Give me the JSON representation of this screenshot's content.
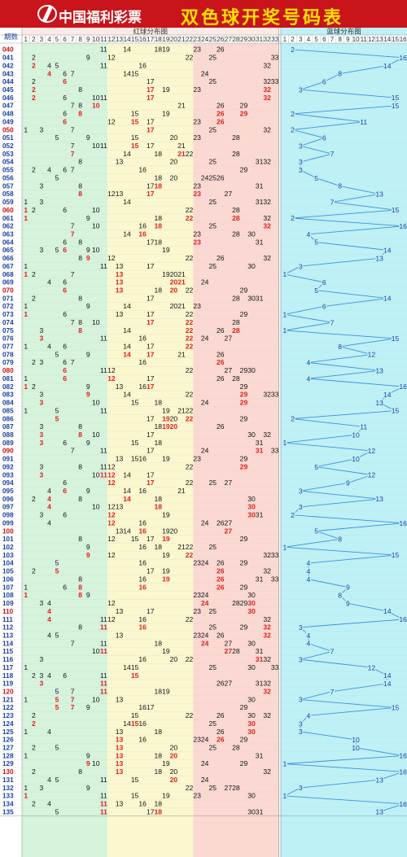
{
  "header": {
    "logo_text": "中国福利彩票",
    "title": "双色球开奖号码表"
  },
  "colors": {
    "header_bg": "#c8141a",
    "title_color": "#ffe100",
    "zone_green": "#d6f3dc",
    "zone_yellow": "#fbf7cf",
    "zone_pink": "#fbd9d2",
    "zone_blue": "#bdf1f6",
    "hot_red": "#e0201c",
    "cold_black": "#111111",
    "blue_ball": "#1b3fa5",
    "issue_blue": "#1b3fa5",
    "issue_red": "#d01010",
    "trend_line": "#3d90dc"
  },
  "chart_data": {
    "type": "table",
    "issue_label": "期数",
    "red_zone_label": "红球分布图",
    "blue_zone_label": "蓝球分布图",
    "red_columns": [
      1,
      2,
      3,
      4,
      5,
      6,
      7,
      8,
      9,
      10,
      11,
      12,
      13,
      14,
      15,
      16,
      17,
      18,
      19,
      20,
      21,
      22,
      23,
      24,
      25,
      26,
      27,
      28,
      29,
      30,
      31,
      32,
      33
    ],
    "blue_columns": [
      1,
      2,
      3,
      4,
      5,
      6,
      7,
      8,
      9,
      10,
      11,
      12,
      13,
      14,
      15,
      16
    ],
    "draws": [
      {
        "issue": "040",
        "red": [
          11,
          14,
          18,
          19,
          23,
          26
        ],
        "blue": 2
      },
      {
        "issue": "041",
        "red": [
          2,
          9,
          12,
          22,
          25,
          33
        ],
        "blue": 16
      },
      {
        "issue": "042",
        "red": [
          2,
          4,
          5,
          11,
          16,
          32
        ],
        "blue": 14
      },
      {
        "issue": "043",
        "red": [
          4,
          6,
          7,
          14,
          15,
          24
        ],
        "blue": 8
      },
      {
        "issue": "044",
        "red": [
          2,
          6,
          17,
          25,
          32,
          33
        ],
        "blue": 6
      },
      {
        "issue": "045",
        "red": [
          2,
          8,
          17,
          19,
          23,
          32
        ],
        "blue": 3
      },
      {
        "issue": "046",
        "red": [
          2,
          6,
          10,
          11,
          17,
          32
        ],
        "blue": 15
      },
      {
        "issue": "047",
        "red": [
          7,
          8,
          10,
          21,
          26,
          29
        ],
        "blue": 15
      },
      {
        "issue": "048",
        "red": [
          6,
          8,
          15,
          19,
          26,
          29
        ],
        "blue": 2
      },
      {
        "issue": "049",
        "red": [
          6,
          12,
          15,
          17,
          23,
          26
        ],
        "blue": 11
      },
      {
        "issue": "050",
        "red": [
          1,
          3,
          7,
          17,
          25,
          32
        ],
        "blue": 2
      },
      {
        "issue": "051",
        "red": [
          5,
          9,
          15,
          20,
          23,
          28
        ],
        "blue": 6
      },
      {
        "issue": "052",
        "red": [
          7,
          10,
          11,
          15,
          17,
          21
        ],
        "blue": 3
      },
      {
        "issue": "053",
        "red": [
          7,
          14,
          18,
          21,
          22,
          28
        ],
        "blue": 7
      },
      {
        "issue": "054",
        "red": [
          8,
          13,
          20,
          25,
          31,
          32
        ],
        "blue": 3
      },
      {
        "issue": "055",
        "red": [
          2,
          4,
          6,
          7,
          16,
          29
        ],
        "blue": 3
      },
      {
        "issue": "056",
        "red": [
          5,
          18,
          20,
          24,
          25,
          26
        ],
        "blue": 5
      },
      {
        "issue": "057",
        "red": [
          3,
          8,
          17,
          18,
          23,
          31
        ],
        "blue": 8
      },
      {
        "issue": "058",
        "red": [
          8,
          12,
          13,
          17,
          23,
          27
        ],
        "blue": 13
      },
      {
        "issue": "059",
        "red": [
          1,
          3,
          14,
          25,
          31,
          32
        ],
        "blue": 7
      },
      {
        "issue": "060",
        "red": [
          1,
          2,
          6,
          10,
          22,
          28
        ],
        "blue": 15
      },
      {
        "issue": "061",
        "red": [
          1,
          9,
          18,
          22,
          28,
          32
        ],
        "blue": 2
      },
      {
        "issue": "062",
        "red": [
          7,
          10,
          16,
          18,
          25,
          32
        ],
        "blue": 16
      },
      {
        "issue": "063",
        "red": [
          7,
          14,
          16,
          23,
          28,
          30
        ],
        "blue": 4
      },
      {
        "issue": "064",
        "red": [
          6,
          8,
          17,
          18,
          23,
          31
        ],
        "blue": 5
      },
      {
        "issue": "065",
        "red": [
          3,
          5,
          6,
          9,
          10,
          19
        ],
        "blue": 14
      },
      {
        "issue": "066",
        "red": [
          8,
          9,
          12,
          22,
          26,
          32
        ],
        "blue": 13
      },
      {
        "issue": "067",
        "red": [
          1,
          11,
          13,
          17,
          25,
          30
        ],
        "blue": 3
      },
      {
        "issue": "068",
        "red": [
          1,
          2,
          7,
          13,
          19,
          20,
          21
        ],
        "blue": 1
      },
      {
        "issue": "069",
        "red": [
          4,
          6,
          13,
          20,
          21,
          24
        ],
        "blue": 6
      },
      {
        "issue": "070",
        "red": [
          6,
          13,
          18,
          20,
          22,
          29
        ],
        "blue": 5
      },
      {
        "issue": "071",
        "red": [
          2,
          8,
          17,
          28,
          30,
          31
        ],
        "blue": 14
      },
      {
        "issue": "072",
        "red": [
          1,
          9,
          14,
          20,
          21,
          23
        ],
        "blue": 6
      },
      {
        "issue": "073",
        "red": [
          1,
          6,
          13,
          17,
          22,
          29
        ],
        "blue": 1
      },
      {
        "issue": "074",
        "red": [
          7,
          8,
          10,
          17,
          22,
          28
        ],
        "blue": 7
      },
      {
        "issue": "075",
        "red": [
          3,
          8,
          14,
          22,
          26,
          28
        ],
        "blue": 1
      },
      {
        "issue": "076",
        "red": [
          3,
          11,
          16,
          22,
          24,
          27
        ],
        "blue": 15
      },
      {
        "issue": "077",
        "red": [
          1,
          4,
          6,
          14,
          17,
          22
        ],
        "blue": 8
      },
      {
        "issue": "078",
        "red": [
          5,
          9,
          14,
          17,
          21,
          26
        ],
        "blue": 12
      },
      {
        "issue": "079",
        "red": [
          2,
          3,
          6,
          7,
          16,
          26
        ],
        "blue": 4
      },
      {
        "issue": "080",
        "red": [
          6,
          11,
          12,
          22,
          27,
          29,
          30
        ],
        "blue": 13
      },
      {
        "issue": "081",
        "red": [
          1,
          6,
          12,
          17,
          26,
          28
        ],
        "blue": 4
      },
      {
        "issue": "082",
        "red": [
          1,
          2,
          9,
          13,
          16,
          17,
          29
        ],
        "blue": 16
      },
      {
        "issue": "083",
        "red": [
          3,
          9,
          14,
          22,
          29,
          32,
          33
        ],
        "blue": 14
      },
      {
        "issue": "084",
        "red": [
          3,
          10,
          15,
          18,
          24,
          29
        ],
        "blue": 13
      },
      {
        "issue": "085",
        "red": [
          1,
          5,
          11,
          19,
          21,
          22
        ],
        "blue": 15
      },
      {
        "issue": "086",
        "red": [
          5,
          17,
          19,
          20,
          22,
          29
        ],
        "blue": 2
      },
      {
        "issue": "087",
        "red": [
          3,
          8,
          18,
          19,
          20,
          26
        ],
        "blue": 11
      },
      {
        "issue": "088",
        "red": [
          3,
          8,
          10,
          17,
          30,
          32
        ],
        "blue": 10
      },
      {
        "issue": "089",
        "red": [
          3,
          6,
          9,
          15,
          18,
          31
        ],
        "blue": 1
      },
      {
        "issue": "090",
        "red": [
          7,
          11,
          17,
          24,
          31,
          33
        ],
        "blue": 12
      },
      {
        "issue": "091",
        "red": [
          13,
          15,
          16,
          19,
          23,
          29
        ],
        "blue": 10
      },
      {
        "issue": "092",
        "red": [
          3,
          8,
          11,
          12,
          22,
          29
        ],
        "blue": 5
      },
      {
        "issue": "093",
        "red": [
          3,
          10,
          11,
          12,
          14,
          17
        ],
        "blue": 12
      },
      {
        "issue": "094",
        "red": [
          6,
          12,
          17,
          22,
          25,
          27
        ],
        "blue": 9
      },
      {
        "issue": "095",
        "red": [
          4,
          6,
          9,
          14,
          16,
          21
        ],
        "blue": 3
      },
      {
        "issue": "096",
        "red": [
          2,
          4,
          8,
          14,
          18,
          30
        ],
        "blue": 13
      },
      {
        "issue": "097",
        "red": [
          4,
          10,
          12,
          13,
          18,
          30
        ],
        "blue": 3
      },
      {
        "issue": "098",
        "red": [
          3,
          6,
          12,
          19,
          30,
          31
        ],
        "blue": 2
      },
      {
        "issue": "099",
        "red": [
          4,
          12,
          16,
          24,
          26,
          27
        ],
        "blue": 16
      },
      {
        "issue": "100",
        "red": [
          13,
          14,
          16,
          19,
          20,
          27
        ],
        "blue": 5
      },
      {
        "issue": "101",
        "red": [
          8,
          12,
          15,
          17,
          19,
          29
        ],
        "blue": 8
      },
      {
        "issue": "102",
        "red": [
          9,
          16,
          18,
          21,
          22,
          25
        ],
        "blue": 1
      },
      {
        "issue": "103",
        "red": [
          9,
          12,
          19,
          22,
          32,
          33
        ],
        "blue": 15
      },
      {
        "issue": "104",
        "red": [
          5,
          16,
          23,
          24,
          26,
          29
        ],
        "blue": 4
      },
      {
        "issue": "105",
        "red": [
          2,
          5,
          17,
          19,
          26,
          32
        ],
        "blue": 4
      },
      {
        "issue": "106",
        "red": [
          8,
          16,
          19,
          26,
          31,
          33
        ],
        "blue": 4
      },
      {
        "issue": "107",
        "red": [
          1,
          6,
          8,
          16,
          26,
          29
        ],
        "blue": 9
      },
      {
        "issue": "108",
        "red": [
          1,
          8,
          9,
          23,
          24,
          30
        ],
        "blue": 8
      },
      {
        "issue": "109",
        "red": [
          3,
          4,
          12,
          24,
          28,
          29,
          30
        ],
        "blue": 9
      },
      {
        "issue": "110",
        "red": [
          4,
          13,
          17,
          23,
          25,
          30
        ],
        "blue": 14
      },
      {
        "issue": "111",
        "red": [
          4,
          11,
          12,
          16,
          22,
          32
        ],
        "blue": 16
      },
      {
        "issue": "112",
        "red": [
          8,
          11,
          16,
          25,
          29,
          32
        ],
        "blue": 3
      },
      {
        "issue": "113",
        "red": [
          4,
          5,
          13,
          23,
          24,
          26,
          32
        ],
        "blue": 4
      },
      {
        "issue": "114",
        "red": [
          7,
          11,
          18,
          24,
          27,
          30
        ],
        "blue": 4
      },
      {
        "issue": "115",
        "red": [
          10,
          11,
          19,
          27,
          28,
          31
        ],
        "blue": 7
      },
      {
        "issue": "116",
        "red": [
          3,
          16,
          20,
          22,
          31,
          32
        ],
        "blue": 3
      },
      {
        "issue": "117",
        "red": [
          1,
          14,
          15,
          25,
          30,
          33
        ],
        "blue": 12
      },
      {
        "issue": "118",
        "red": [
          2,
          3,
          4,
          6,
          11,
          15
        ],
        "blue": 14
      },
      {
        "issue": "119",
        "red": [
          3,
          11,
          26,
          27,
          31,
          32
        ],
        "blue": 14
      },
      {
        "issue": "120",
        "red": [
          5,
          7,
          11,
          18,
          19,
          32
        ],
        "blue": 7
      },
      {
        "issue": "121",
        "red": [
          1,
          5,
          7,
          10,
          13,
          30
        ],
        "blue": 3
      },
      {
        "issue": "122",
        "red": [
          5,
          7,
          9,
          16,
          17,
          29
        ],
        "blue": 15
      },
      {
        "issue": "123",
        "red": [
          2,
          15,
          22,
          26,
          30,
          32
        ],
        "blue": 4
      },
      {
        "issue": "124",
        "red": [
          2,
          14,
          15,
          16,
          25,
          30
        ],
        "blue": 3
      },
      {
        "issue": "125",
        "red": [
          1,
          4,
          13,
          18,
          26,
          30
        ],
        "blue": 3
      },
      {
        "issue": "126",
        "red": [
          13,
          16,
          23,
          24,
          26,
          29
        ],
        "blue": 10
      },
      {
        "issue": "127",
        "red": [
          2,
          5,
          13,
          20,
          25,
          28
        ],
        "blue": 10
      },
      {
        "issue": "128",
        "red": [
          1,
          9,
          13,
          18,
          20,
          31
        ],
        "blue": 16
      },
      {
        "issue": "129",
        "red": [
          9,
          10,
          13,
          19,
          24,
          29
        ],
        "blue": 1
      },
      {
        "issue": "130",
        "red": [
          2,
          8,
          13,
          18,
          20,
          32
        ],
        "blue": 16
      },
      {
        "issue": "131",
        "red": [
          4,
          5,
          11,
          15,
          20,
          24
        ],
        "blue": 13
      },
      {
        "issue": "132",
        "red": [
          1,
          3,
          9,
          22,
          25,
          27,
          28
        ],
        "blue": 3
      },
      {
        "issue": "133",
        "red": [
          1,
          11,
          15,
          19,
          23,
          30
        ],
        "blue": 1
      },
      {
        "issue": "134",
        "red": [
          2,
          4,
          11,
          13,
          16,
          18
        ],
        "blue": 16
      },
      {
        "issue": "135",
        "red": [
          5,
          11,
          17,
          18,
          30,
          31
        ],
        "blue": 13
      }
    ]
  }
}
